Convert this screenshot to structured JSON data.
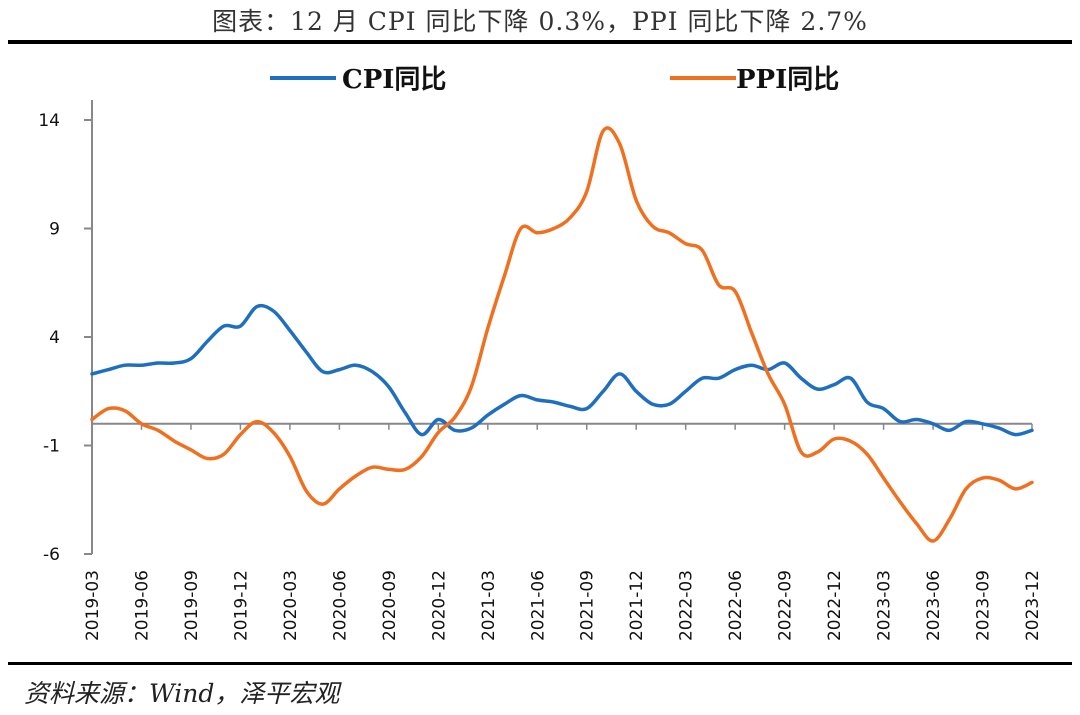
{
  "title": "图表：12 月 CPI 同比下降 0.3%，PPI 同比下降 2.7%",
  "source": "资料来源：Wind，泽平宏观",
  "chart_data": {
    "type": "line",
    "ylim": [
      -6,
      14
    ],
    "yticks": [
      "14",
      "9",
      "4",
      "-1",
      "-6"
    ],
    "ytick_values": [
      14,
      9,
      4,
      -1,
      -6
    ],
    "xtick_labels": [
      "2019-03",
      "2019-06",
      "2019-09",
      "2019-12",
      "2020-03",
      "2020-06",
      "2020-09",
      "2020-12",
      "2021-03",
      "2021-06",
      "2021-09",
      "2021-12",
      "2022-03",
      "2022-06",
      "2022-09",
      "2022-12",
      "2023-03",
      "2023-06",
      "2023-09",
      "2023-12"
    ],
    "legend_position": "top",
    "x": [
      "2019-03",
      "2019-04",
      "2019-05",
      "2019-06",
      "2019-07",
      "2019-08",
      "2019-09",
      "2019-10",
      "2019-11",
      "2019-12",
      "2020-01",
      "2020-02",
      "2020-03",
      "2020-04",
      "2020-05",
      "2020-06",
      "2020-07",
      "2020-08",
      "2020-09",
      "2020-10",
      "2020-11",
      "2020-12",
      "2021-01",
      "2021-02",
      "2021-03",
      "2021-04",
      "2021-05",
      "2021-06",
      "2021-07",
      "2021-08",
      "2021-09",
      "2021-10",
      "2021-11",
      "2021-12",
      "2022-01",
      "2022-02",
      "2022-03",
      "2022-04",
      "2022-05",
      "2022-06",
      "2022-07",
      "2022-08",
      "2022-09",
      "2022-10",
      "2022-11",
      "2022-12",
      "2023-01",
      "2023-02",
      "2023-03",
      "2023-04",
      "2023-05",
      "2023-06",
      "2023-07",
      "2023-08",
      "2023-09",
      "2023-10",
      "2023-11",
      "2023-12"
    ],
    "series": [
      {
        "name": "CPI同比",
        "color": "#1f6fc0",
        "values": [
          2.3,
          2.5,
          2.7,
          2.7,
          2.8,
          2.8,
          3.0,
          3.8,
          4.5,
          4.5,
          5.4,
          5.2,
          4.3,
          3.3,
          2.4,
          2.5,
          2.7,
          2.4,
          1.7,
          0.5,
          -0.5,
          0.2,
          -0.3,
          -0.2,
          0.4,
          0.9,
          1.3,
          1.1,
          1.0,
          0.8,
          0.7,
          1.5,
          2.3,
          1.5,
          0.9,
          0.9,
          1.5,
          2.1,
          2.1,
          2.5,
          2.7,
          2.5,
          2.8,
          2.1,
          1.6,
          1.8,
          2.1,
          1.0,
          0.7,
          0.1,
          0.2,
          0.0,
          -0.3,
          0.1,
          0.0,
          -0.2,
          -0.5,
          -0.3
        ]
      },
      {
        "name": "PPI同比",
        "color": "#f07020",
        "values": [
          0.2,
          0.7,
          0.6,
          0.0,
          -0.3,
          -0.8,
          -1.2,
          -1.6,
          -1.4,
          -0.5,
          0.1,
          -0.4,
          -1.5,
          -3.1,
          -3.7,
          -3.0,
          -2.4,
          -2.0,
          -2.1,
          -2.1,
          -1.5,
          -0.4,
          0.3,
          1.7,
          4.4,
          6.8,
          9.0,
          8.8,
          9.0,
          9.5,
          10.7,
          13.5,
          12.9,
          10.3,
          9.1,
          8.8,
          8.3,
          8.0,
          6.4,
          6.1,
          4.2,
          2.3,
          0.9,
          -1.3,
          -1.3,
          -0.7,
          -0.8,
          -1.4,
          -2.5,
          -3.6,
          -4.6,
          -5.4,
          -4.4,
          -3.0,
          -2.5,
          -2.6,
          -3.0,
          -2.7
        ]
      }
    ]
  }
}
